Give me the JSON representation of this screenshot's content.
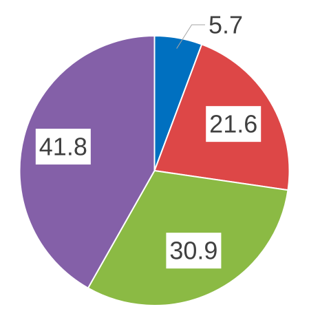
{
  "chart_data": {
    "type": "pie",
    "title": "",
    "values": [
      5.7,
      21.6,
      30.9,
      41.8
    ],
    "value_labels": [
      "5.7",
      "21.6",
      "30.9",
      "41.8"
    ],
    "colors": [
      "#0070C0",
      "#DD4747",
      "#8BBA44",
      "#8460A8"
    ],
    "start_angle_deg": 0,
    "direction": "clockwise",
    "legend": "none"
  }
}
